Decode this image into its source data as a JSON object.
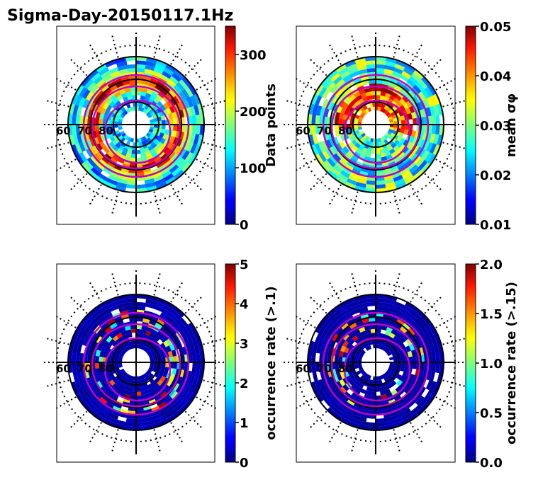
{
  "title": "Sigma-Day-20150117.1Hz",
  "polar_labels": [
    "60",
    "70",
    "80"
  ],
  "chart_data": [
    {
      "type": "heatmap",
      "projection": "polar",
      "colormap": "jet",
      "colorbar": {
        "label": "Data points",
        "ticks": [
          "0",
          "100",
          "200",
          "300"
        ],
        "range": [
          0,
          350
        ]
      },
      "latitude_circles": [
        60,
        70,
        80
      ]
    },
    {
      "type": "heatmap",
      "projection": "polar",
      "colormap": "jet",
      "colorbar": {
        "label": "mean σφ",
        "ticks": [
          "0.01",
          "0.02",
          "0.03",
          "0.04",
          "0.05"
        ],
        "range": [
          0.01,
          0.05
        ]
      },
      "latitude_circles": [
        60,
        70,
        80
      ]
    },
    {
      "type": "heatmap",
      "projection": "polar",
      "colormap": "jet",
      "colorbar": {
        "label": "occurrence rate (>.1)",
        "ticks": [
          "0",
          "1",
          "2",
          "3",
          "4",
          "5"
        ],
        "range": [
          0,
          5
        ]
      },
      "latitude_circles": [
        60,
        70,
        80
      ]
    },
    {
      "type": "heatmap",
      "projection": "polar",
      "colormap": "jet",
      "colorbar": {
        "label": "occurrence rate (>.15)",
        "ticks": [
          "0.0",
          "0.5",
          "1.0",
          "1.5",
          "2.0"
        ],
        "range": [
          0,
          2
        ]
      },
      "latitude_circles": [
        60,
        70,
        80
      ]
    }
  ]
}
